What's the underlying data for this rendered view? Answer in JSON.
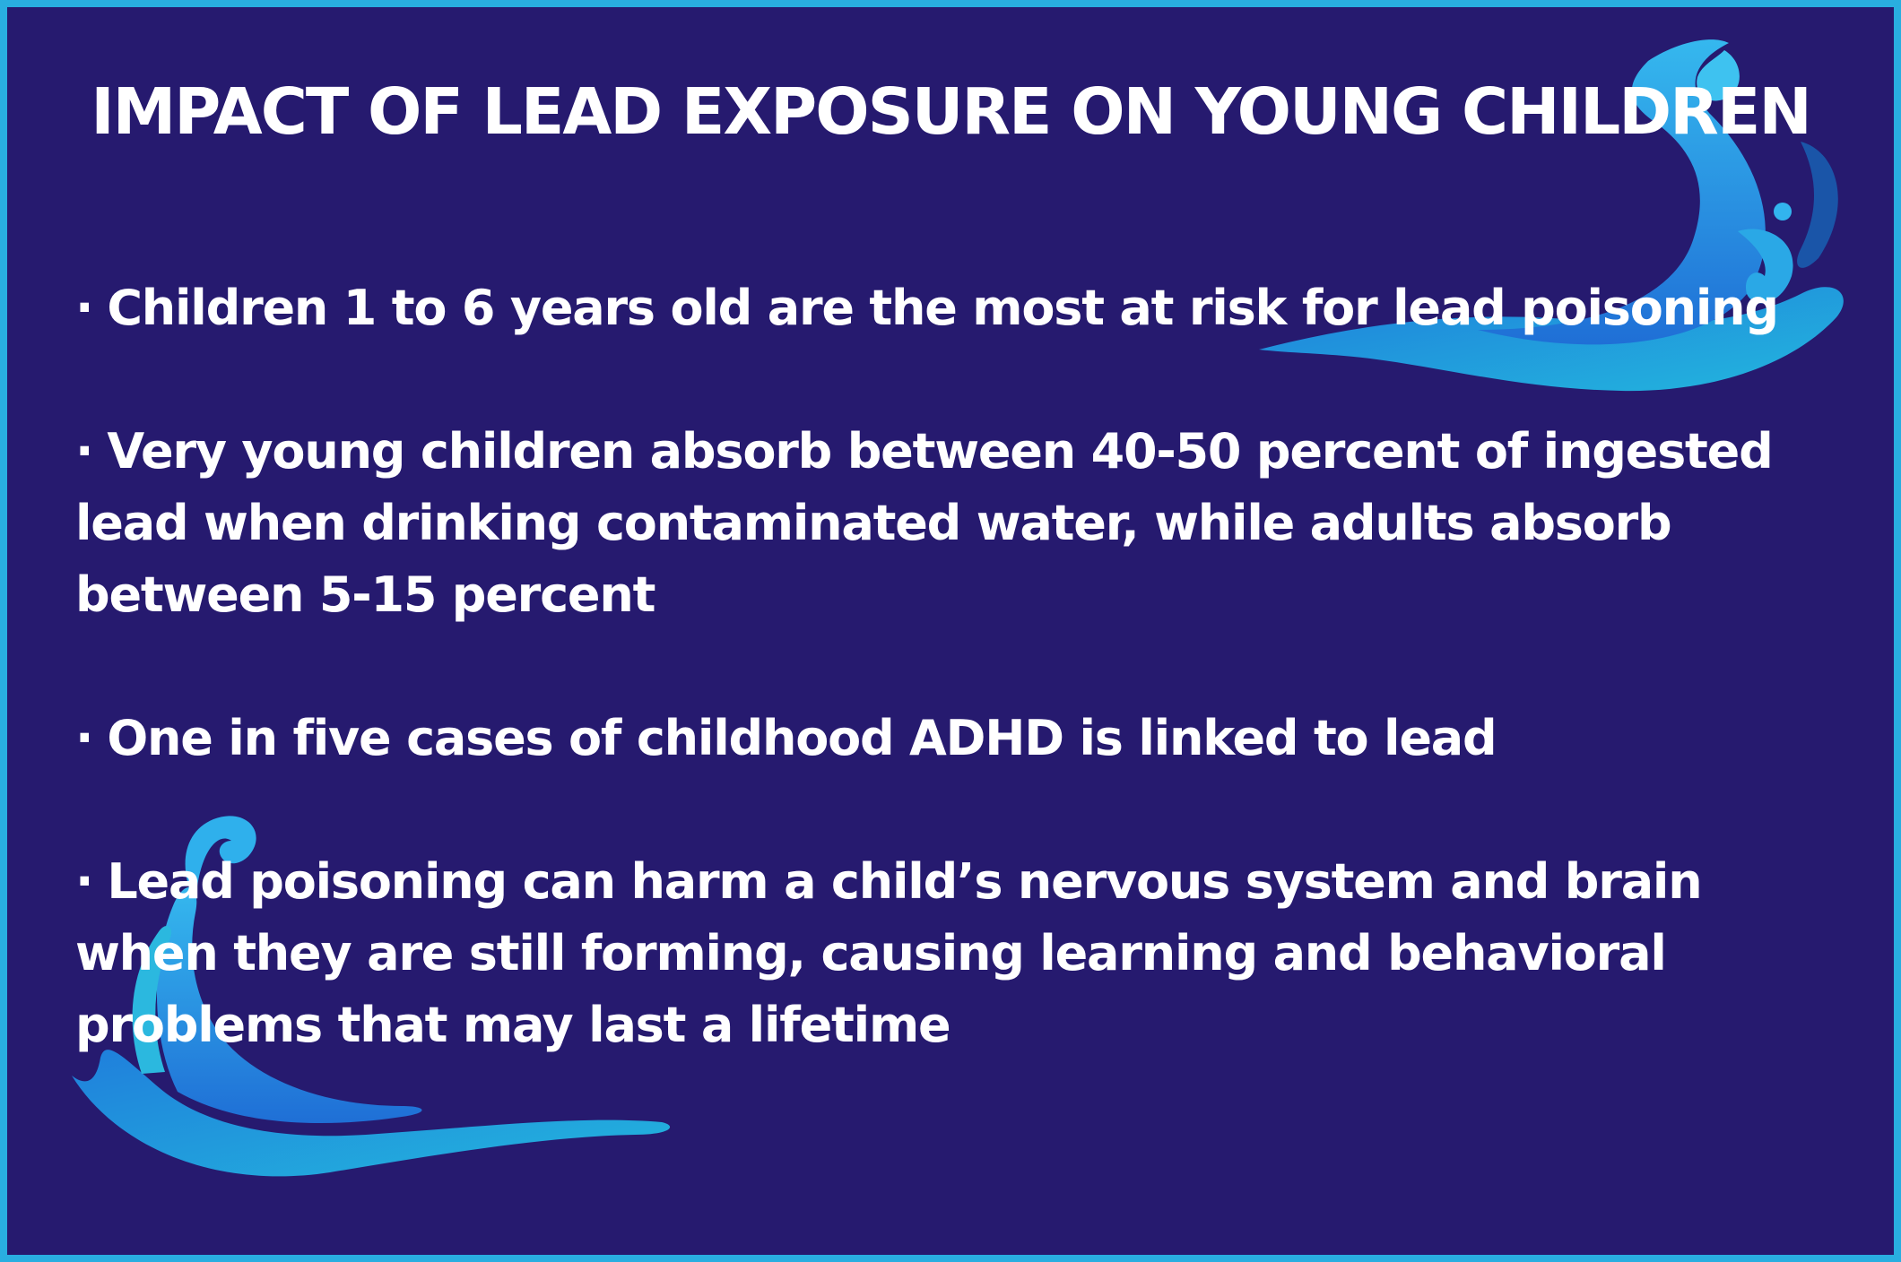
{
  "title": "IMPACT OF LEAD EXPOSURE ON YOUNG CHILDREN",
  "bullet_marker": "·",
  "bullets": [
    "Children 1 to 6 years old are the most at risk for lead poisoning",
    "Very young children absorb between 40-50 percent of ingested lead when drinking contaminated water, while adults absorb between 5-15 percent",
    "One in five cases of childhood ADHD is linked to lead",
    "Lead poisoning can harm a child’s nervous system and brain when they are still forming, causing learning and behavioral problems that may last a lifetime"
  ],
  "colors": {
    "background": "#261a6f",
    "border": "#29aee0",
    "text": "#ffffff",
    "splash_light": "#2fc1e0",
    "splash_mid": "#1f8fde",
    "splash_dark": "#1a55a8"
  },
  "decorations": [
    "water-splash-top-right",
    "water-splash-bottom-left"
  ]
}
